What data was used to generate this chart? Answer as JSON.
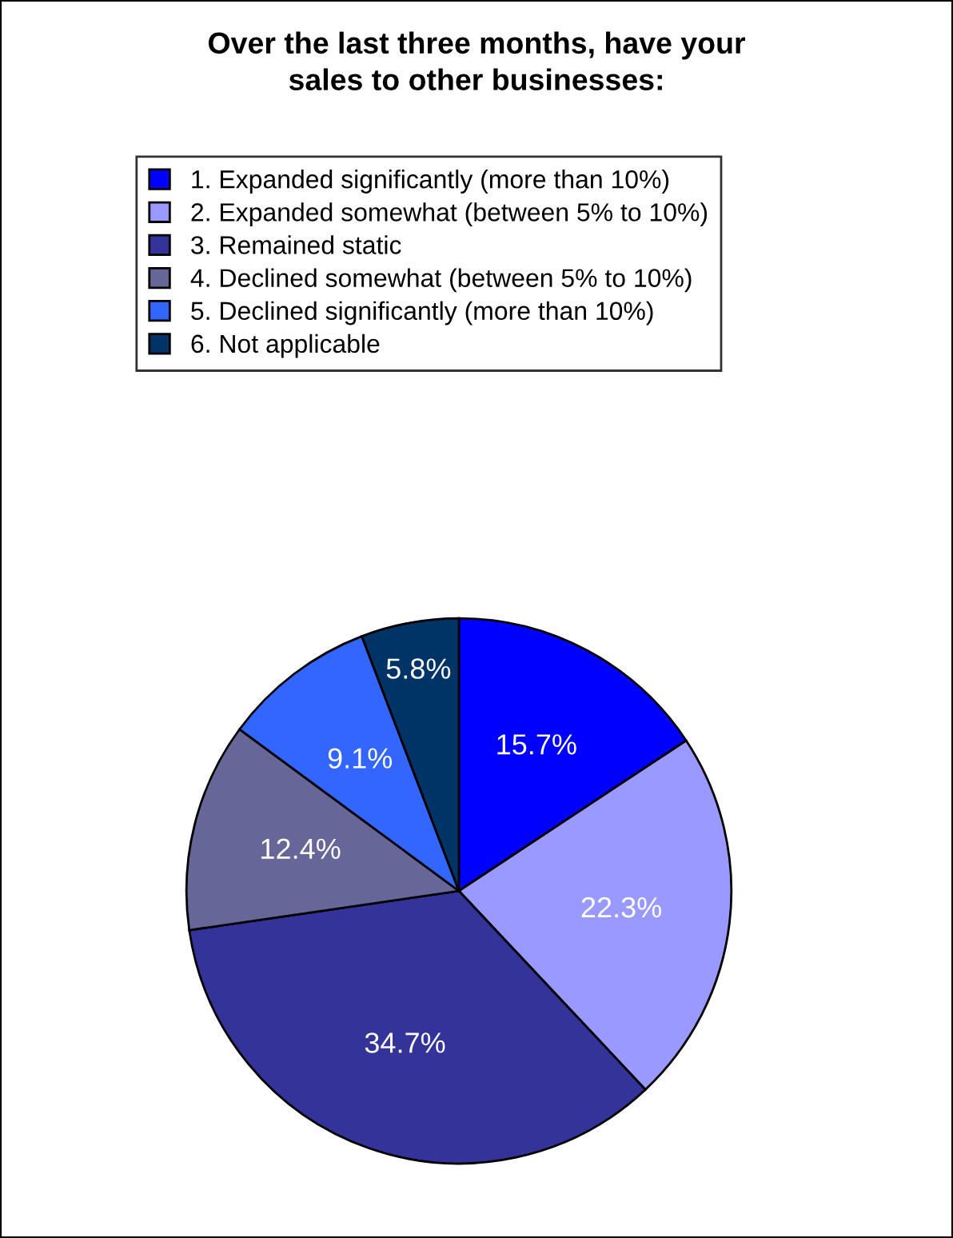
{
  "chart_data": {
    "type": "pie",
    "title": "Over the last three months, have your\nsales to other businesses:",
    "categories": [
      "1. Expanded significantly (more than 10%)",
      "2. Expanded somewhat (between 5% to 10%)",
      "3. Remained static",
      "4. Declined somewhat (between 5% to 10%)",
      "5. Declined significantly (more than 10%)",
      "6. Not applicable"
    ],
    "values": [
      15.7,
      22.3,
      34.7,
      12.4,
      9.1,
      5.8
    ],
    "colors": [
      "#0000ff",
      "#9999ff",
      "#333399",
      "#666699",
      "#3366ff",
      "#003366"
    ],
    "value_labels": [
      "15.7%",
      "22.3%",
      "34.7%",
      "12.4%",
      "9.1%",
      "5.8%"
    ],
    "legend": "top"
  }
}
